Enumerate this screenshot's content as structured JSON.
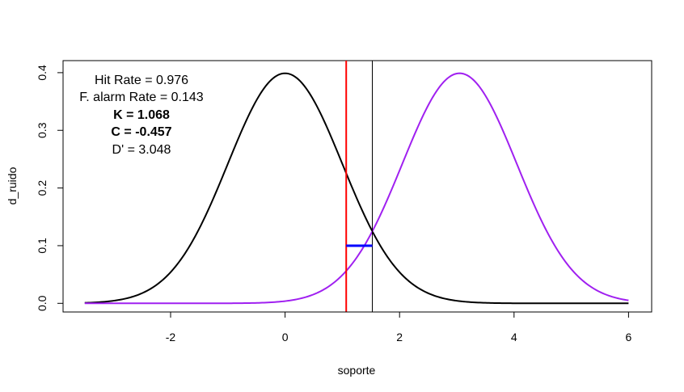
{
  "chart_data": {
    "type": "line",
    "title": "",
    "xlabel": "soporte",
    "ylabel": "d_ruido",
    "xlim": [
      -3.5,
      6
    ],
    "ylim": [
      0,
      0.4
    ],
    "x_ticks": [
      -2,
      0,
      2,
      4,
      6
    ],
    "x_tick_labels": [
      "-2",
      "0",
      "2",
      "4",
      "6"
    ],
    "y_ticks": [
      0,
      0.1,
      0.2,
      0.3,
      0.4
    ],
    "y_tick_labels": [
      "0.0",
      "0.1",
      "0.2",
      "0.3",
      "0.4"
    ],
    "grid": false,
    "series": [
      {
        "color": "#000000",
        "x": [
          -3.5,
          -3.0,
          -2.5,
          -2.0,
          -1.5,
          -1.0,
          -0.5,
          0.0,
          0.5,
          1.0,
          1.5,
          2.0,
          2.5,
          3.0,
          3.5,
          4.0,
          4.5,
          5.0,
          5.5,
          6.0
        ],
        "values": [
          0.0009,
          0.0044,
          0.0175,
          0.054,
          0.1295,
          0.242,
          0.3521,
          0.3989,
          0.3521,
          0.242,
          0.1295,
          0.054,
          0.0175,
          0.0044,
          0.0009,
          0.0001,
          0.0,
          0.0,
          0.0,
          0.0
        ]
      },
      {
        "color": "#a020f0",
        "x": [
          -3.5,
          -3.0,
          -2.5,
          -2.0,
          -1.5,
          -1.0,
          -0.5,
          0.0,
          0.5,
          1.0,
          1.5,
          2.0,
          2.5,
          3.0,
          3.5,
          4.0,
          4.5,
          5.0,
          5.5,
          6.0
        ],
        "values": [
          0.0,
          0.0,
          0.0,
          0.0,
          0.0,
          0.0001,
          0.0008,
          0.0038,
          0.0151,
          0.0495,
          0.1226,
          0.2334,
          0.3432,
          0.3987,
          0.3589,
          0.2513,
          0.137,
          0.0581,
          0.0193,
          0.005
        ]
      }
    ],
    "vlines": [
      {
        "x": 1.068,
        "color": "#ff0000"
      },
      {
        "x": 1.524,
        "color": "#000000"
      }
    ],
    "hsegment": {
      "x0": 1.068,
      "x1": 1.524,
      "y": 0.1,
      "color": "#0000ff"
    },
    "annotations": [
      {
        "text": "Hit Rate =  0.976",
        "color": "#000000",
        "bold": false
      },
      {
        "text": "F. alarm Rate =  0.143",
        "color": "#000000",
        "bold": false
      },
      {
        "text": "K =  1.068",
        "color": "#ff0000",
        "bold": true
      },
      {
        "text": "C =  -0.457",
        "color": "#0000ff",
        "bold": true
      },
      {
        "text": "D' =  3.048",
        "color": "#000000",
        "bold": false
      }
    ]
  }
}
